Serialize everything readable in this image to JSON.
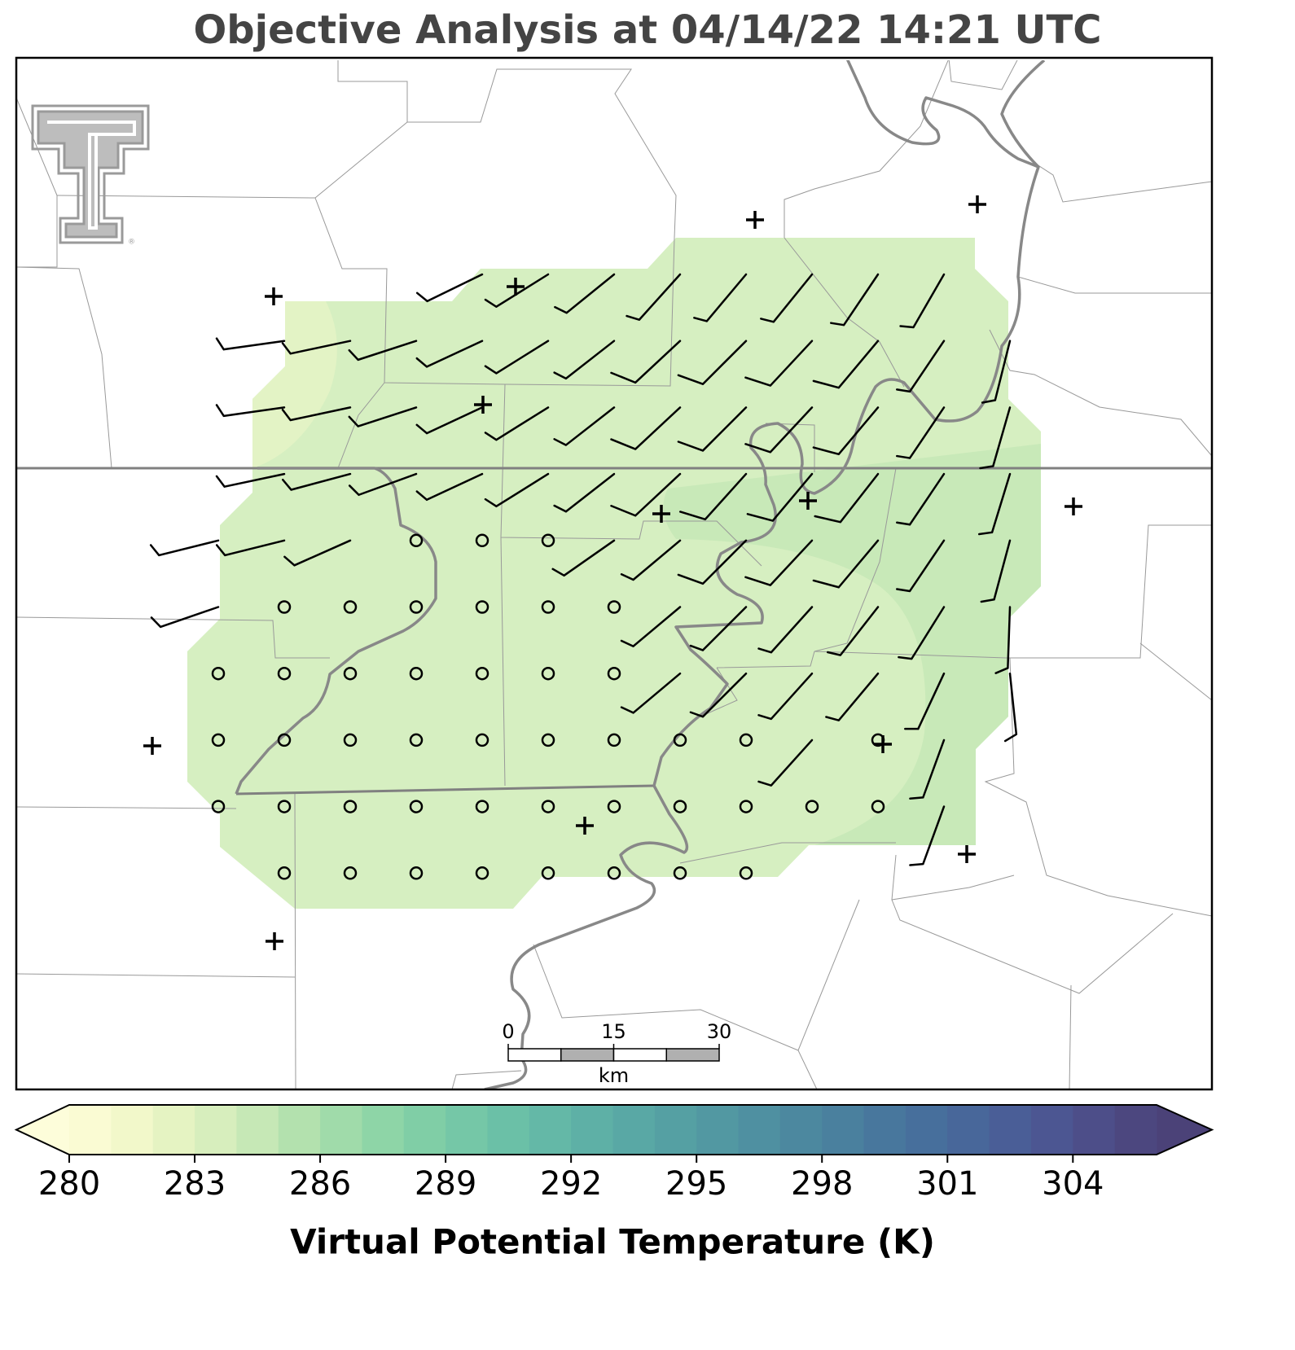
{
  "chart_data": {
    "type": "map",
    "title": "Objective Analysis at 04/14/22 14:21 UTC",
    "wind_calm_marker": "circle",
    "wind": [
      [
        null,
        null,
        null,
        null,
        [
          244,
          5
        ],
        [
          238,
          5
        ],
        [
          231,
          5
        ],
        [
          222,
          5
        ],
        [
          220,
          5
        ],
        [
          219,
          5
        ],
        [
          214,
          5
        ],
        [
          210,
          5
        ],
        null
      ],
      [
        null,
        [
          262,
          5
        ],
        [
          258,
          5
        ],
        [
          252,
          5
        ],
        [
          245,
          5
        ],
        [
          238,
          5
        ],
        [
          232,
          5
        ],
        [
          227,
          10
        ],
        [
          225,
          10
        ],
        [
          223,
          10
        ],
        [
          220,
          10
        ],
        [
          214,
          5
        ],
        [
          194,
          5
        ]
      ],
      [
        null,
        [
          262,
          5
        ],
        [
          258,
          5
        ],
        [
          252,
          5
        ],
        [
          245,
          5
        ],
        [
          238,
          5
        ],
        [
          232,
          5
        ],
        [
          227,
          10
        ],
        [
          225,
          10
        ],
        [
          223,
          10
        ],
        [
          220,
          10
        ],
        [
          214,
          5
        ],
        [
          196,
          5
        ]
      ],
      [
        null,
        [
          258,
          5
        ],
        [
          255,
          5
        ],
        [
          250,
          5
        ],
        [
          245,
          5
        ],
        [
          238,
          5
        ],
        [
          232,
          5
        ],
        [
          227,
          10
        ],
        [
          222,
          10
        ],
        [
          220,
          10
        ],
        [
          218,
          10
        ],
        [
          214,
          5
        ],
        [
          197,
          5
        ]
      ],
      [
        [
          256,
          5
        ],
        [
          256,
          5
        ],
        [
          246,
          5
        ],
        [
          0,
          0
        ],
        [
          0,
          0
        ],
        [
          0,
          0
        ],
        [
          235,
          5
        ],
        [
          230,
          5
        ],
        [
          225,
          10
        ],
        [
          223,
          10
        ],
        [
          220,
          10
        ],
        [
          214,
          5
        ],
        [
          195,
          5
        ]
      ],
      [
        [
          251,
          5
        ],
        [
          0,
          0
        ],
        [
          0,
          0
        ],
        [
          0,
          0
        ],
        [
          0,
          0
        ],
        [
          0,
          0
        ],
        [
          0,
          0
        ],
        [
          230,
          5
        ],
        [
          225,
          5
        ],
        [
          222,
          5
        ],
        [
          218,
          5
        ],
        [
          212,
          5
        ],
        [
          182,
          5
        ]
      ],
      [
        [
          0,
          0
        ],
        [
          0,
          0
        ],
        [
          0,
          0
        ],
        [
          0,
          0
        ],
        [
          0,
          0
        ],
        [
          0,
          0
        ],
        [
          0,
          0
        ],
        [
          230,
          5
        ],
        [
          225,
          5
        ],
        [
          222,
          5
        ],
        [
          220,
          5
        ],
        [
          205,
          5
        ],
        [
          174,
          5
        ]
      ],
      [
        [
          0,
          0
        ],
        [
          0,
          0
        ],
        [
          0,
          0
        ],
        [
          0,
          0
        ],
        [
          0,
          0
        ],
        [
          0,
          0
        ],
        [
          0,
          0
        ],
        [
          0,
          0
        ],
        [
          0,
          0
        ],
        [
          222,
          5
        ],
        [
          0,
          0
        ],
        [
          200,
          5
        ],
        null
      ],
      [
        [
          0,
          0
        ],
        [
          0,
          0
        ],
        [
          0,
          0
        ],
        [
          0,
          0
        ],
        [
          0,
          0
        ],
        [
          0,
          0
        ],
        [
          0,
          0
        ],
        [
          0,
          0
        ],
        [
          0,
          0
        ],
        [
          0,
          0
        ],
        [
          0,
          0
        ],
        [
          200,
          5
        ],
        null
      ],
      [
        null,
        [
          0,
          0
        ],
        [
          0,
          0
        ],
        [
          0,
          0
        ],
        [
          0,
          0
        ],
        [
          0,
          0
        ],
        [
          0,
          0
        ],
        [
          0,
          0
        ],
        [
          0,
          0
        ],
        null,
        null,
        null,
        null
      ]
    ],
    "scale_bar": {
      "ticks": [
        0,
        15,
        30
      ],
      "unit": "km"
    },
    "colorbar": {
      "label": "Virtual Potential Temperature (K)",
      "levels": [
        280,
        281,
        282,
        283,
        284,
        285,
        286,
        287,
        288,
        289,
        290,
        291,
        292,
        293,
        294,
        295,
        296,
        297,
        298,
        299,
        300,
        301,
        302,
        303,
        304,
        305,
        306
      ],
      "colors": [
        "#fafbd3",
        "#f2f8ca",
        "#e5f3c2",
        "#d7eebd",
        "#c6e8b6",
        "#b3e1ae",
        "#a0dbaa",
        "#8ed5a7",
        "#80cea6",
        "#75c7a7",
        "#6bc0a7",
        "#64b8a7",
        "#5eb0a6",
        "#59a8a5",
        "#55a0a3",
        "#5298a2",
        "#4f90a1",
        "#4c889f",
        "#4a809e",
        "#48779d",
        "#476f9c",
        "#48679a",
        "#4a5e97",
        "#4c5692",
        "#4d4e89",
        "#4c477f"
      ],
      "under_color": "#fdfdda",
      "over_color": "#4b4278",
      "ticks": [
        280,
        283,
        286,
        289,
        292,
        295,
        298,
        301,
        304
      ]
    }
  }
}
